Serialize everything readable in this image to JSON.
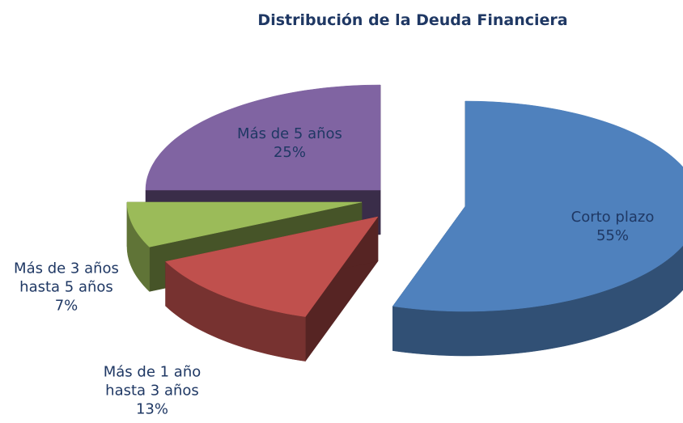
{
  "chart_data": {
    "type": "pie",
    "title": "Distribución de la Deuda Financiera",
    "categories": [
      "Corto plazo",
      "Más de 1 año hasta 3 años",
      "Más de 3 años hasta 5 años",
      "Más de 5 años"
    ],
    "values": [
      55,
      13,
      7,
      25
    ],
    "value_labels": [
      "55%",
      "13%",
      "7%",
      "25%"
    ],
    "colors": [
      "#4f81bd",
      "#c0504d",
      "#9bbb59",
      "#8064a2"
    ]
  }
}
